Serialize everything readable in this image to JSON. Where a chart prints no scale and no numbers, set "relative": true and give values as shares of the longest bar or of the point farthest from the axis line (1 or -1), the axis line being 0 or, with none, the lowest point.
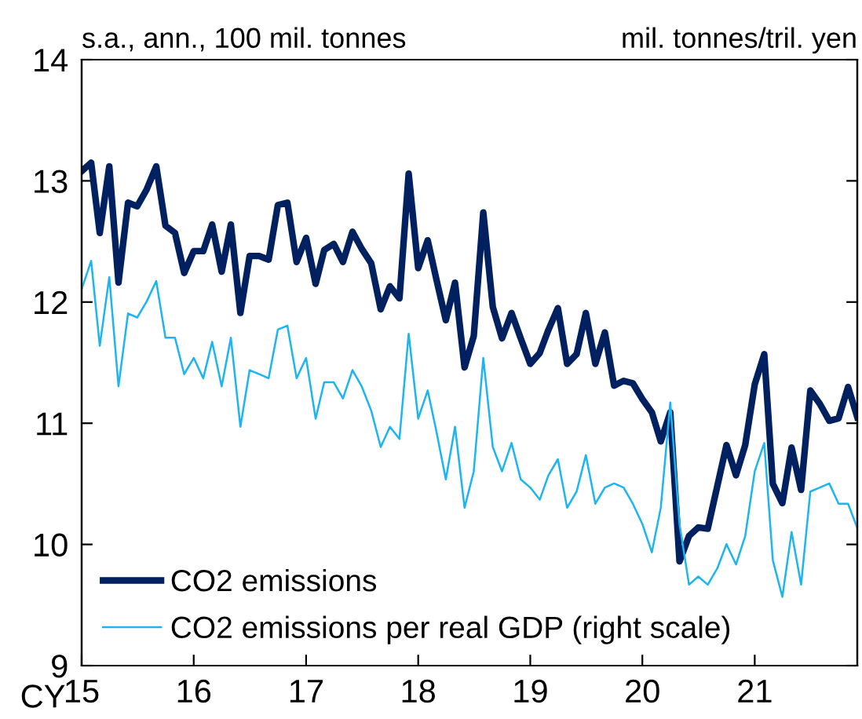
{
  "chart_data": [
    {
      "type": "line",
      "ylabel": "s.a., ann., 100 mil. tonnes",
      "xlabel": "CY",
      "x": [
        "2015-01",
        "2015-02",
        "2015-03",
        "2015-04",
        "2015-05",
        "2015-06",
        "2015-07",
        "2015-08",
        "2015-09",
        "2015-10",
        "2015-11",
        "2015-12",
        "2016-01",
        "2016-02",
        "2016-03",
        "2016-04",
        "2016-05",
        "2016-06",
        "2016-07",
        "2016-08",
        "2016-09",
        "2016-10",
        "2016-11",
        "2016-12",
        "2017-01",
        "2017-02",
        "2017-03",
        "2017-04",
        "2017-05",
        "2017-06",
        "2017-07",
        "2017-08",
        "2017-09",
        "2017-10",
        "2017-11",
        "2017-12",
        "2018-01",
        "2018-02",
        "2018-03",
        "2018-04",
        "2018-05",
        "2018-06",
        "2018-07",
        "2018-08",
        "2018-09",
        "2018-10",
        "2018-11",
        "2018-12",
        "2019-01",
        "2019-02",
        "2019-03",
        "2019-04",
        "2019-05",
        "2019-06",
        "2019-07",
        "2019-08",
        "2019-09",
        "2019-10",
        "2019-11",
        "2019-12",
        "2020-01",
        "2020-02",
        "2020-03",
        "2020-04",
        "2020-05",
        "2020-06",
        "2020-07",
        "2020-08",
        "2020-09",
        "2020-10",
        "2020-11",
        "2020-12",
        "2021-01",
        "2021-02",
        "2021-03",
        "2021-04",
        "2021-05",
        "2021-06",
        "2021-07",
        "2021-08",
        "2021-09",
        "2021-10",
        "2021-11",
        "2021-12"
      ],
      "series": [
        {
          "name": "CO2 emissions",
          "color": "#002060",
          "values": [
            13.08,
            13.15,
            12.57,
            13.12,
            12.16,
            12.82,
            12.79,
            12.93,
            13.12,
            12.63,
            12.57,
            12.24,
            12.42,
            12.42,
            12.64,
            12.25,
            12.64,
            11.91,
            12.38,
            12.38,
            12.35,
            12.8,
            12.82,
            12.33,
            12.53,
            12.15,
            12.43,
            12.48,
            12.33,
            12.58,
            12.44,
            12.32,
            11.94,
            12.13,
            12.03,
            13.06,
            12.28,
            12.51,
            12.19,
            11.85,
            12.16,
            11.46,
            11.72,
            12.74,
            11.96,
            11.7,
            11.91,
            11.7,
            11.49,
            11.58,
            11.77,
            11.95,
            11.49,
            11.57,
            11.91,
            11.49,
            11.75,
            11.31,
            11.35,
            11.33,
            11.2,
            11.09,
            10.85,
            11.09,
            9.86,
            10.07,
            10.14,
            10.13,
            10.48,
            10.82,
            10.57,
            10.82,
            11.32,
            11.57,
            10.5,
            10.34,
            10.8,
            10.45,
            11.27,
            11.16,
            11.02,
            11.04,
            11.3,
            11.05
          ]
        }
      ],
      "xlim": [
        "2015-01",
        "2021-12"
      ],
      "xticks": [
        {
          "value": "2015-01",
          "label": "15"
        },
        {
          "value": "2016-01",
          "label": "16"
        },
        {
          "value": "2017-01",
          "label": "17"
        },
        {
          "value": "2018-01",
          "label": "18"
        },
        {
          "value": "2019-01",
          "label": "19"
        },
        {
          "value": "2020-01",
          "label": "20"
        },
        {
          "value": "2021-01",
          "label": "21"
        }
      ],
      "ylim": [
        9,
        14
      ],
      "yticks": [
        9,
        10,
        11,
        12,
        13,
        14
      ],
      "grid": false,
      "legend": "bottom left",
      "marker": "none",
      "line_style": "solid"
    },
    {
      "type": "line",
      "relative": true,
      "ylabel": "mil. tonnes/tril. yen",
      "x": [
        "2015-01",
        "2015-02",
        "2015-03",
        "2015-04",
        "2015-05",
        "2015-06",
        "2015-07",
        "2015-08",
        "2015-09",
        "2015-10",
        "2015-11",
        "2015-12",
        "2016-01",
        "2016-02",
        "2016-03",
        "2016-04",
        "2016-05",
        "2016-06",
        "2016-07",
        "2016-08",
        "2016-09",
        "2016-10",
        "2016-11",
        "2016-12",
        "2017-01",
        "2017-02",
        "2017-03",
        "2017-04",
        "2017-05",
        "2017-06",
        "2017-07",
        "2017-08",
        "2017-09",
        "2017-10",
        "2017-11",
        "2017-12",
        "2018-01",
        "2018-02",
        "2018-03",
        "2018-04",
        "2018-05",
        "2018-06",
        "2018-07",
        "2018-08",
        "2018-09",
        "2018-10",
        "2018-11",
        "2018-12",
        "2019-01",
        "2019-02",
        "2019-03",
        "2019-04",
        "2019-05",
        "2019-06",
        "2019-07",
        "2019-08",
        "2019-09",
        "2019-10",
        "2019-11",
        "2019-12",
        "2020-01",
        "2020-02",
        "2020-03",
        "2020-04",
        "2020-05",
        "2020-06",
        "2020-07",
        "2020-08",
        "2020-09",
        "2020-10",
        "2020-11",
        "2020-12",
        "2021-01",
        "2021-02",
        "2021-03",
        "2021-04",
        "2021-05",
        "2021-06",
        "2021-07",
        "2021-08",
        "2021-09",
        "2021-10",
        "2021-11",
        "2021-12"
      ],
      "series": [
        {
          "name": "CO2 emissions per real GDP (right scale)",
          "color": "#1cb5f0",
          "values": [
            0.93,
            1.0,
            0.79,
            0.96,
            0.69,
            0.87,
            0.86,
            0.9,
            0.95,
            0.81,
            0.81,
            0.72,
            0.76,
            0.71,
            0.8,
            0.69,
            0.81,
            0.59,
            0.73,
            0.72,
            0.71,
            0.83,
            0.84,
            0.71,
            0.76,
            0.61,
            0.7,
            0.7,
            0.66,
            0.73,
            0.69,
            0.63,
            0.54,
            0.59,
            0.56,
            0.82,
            0.61,
            0.68,
            0.58,
            0.46,
            0.59,
            0.39,
            0.48,
            0.76,
            0.54,
            0.48,
            0.55,
            0.46,
            0.44,
            0.41,
            0.47,
            0.51,
            0.39,
            0.43,
            0.52,
            0.4,
            0.44,
            0.45,
            0.44,
            0.4,
            0.35,
            0.28,
            0.39,
            0.65,
            0.35,
            0.2,
            0.22,
            0.2,
            0.24,
            0.3,
            0.25,
            0.32,
            0.48,
            0.55,
            0.26,
            0.17,
            0.33,
            0.2,
            0.43,
            0.44,
            0.45,
            0.4,
            0.4,
            0.34
          ]
        }
      ],
      "xlim": [
        "2015-01",
        "2021-12"
      ],
      "tick_labels": false,
      "legend": "bottom left",
      "marker": "none",
      "line_style": "solid"
    }
  ]
}
